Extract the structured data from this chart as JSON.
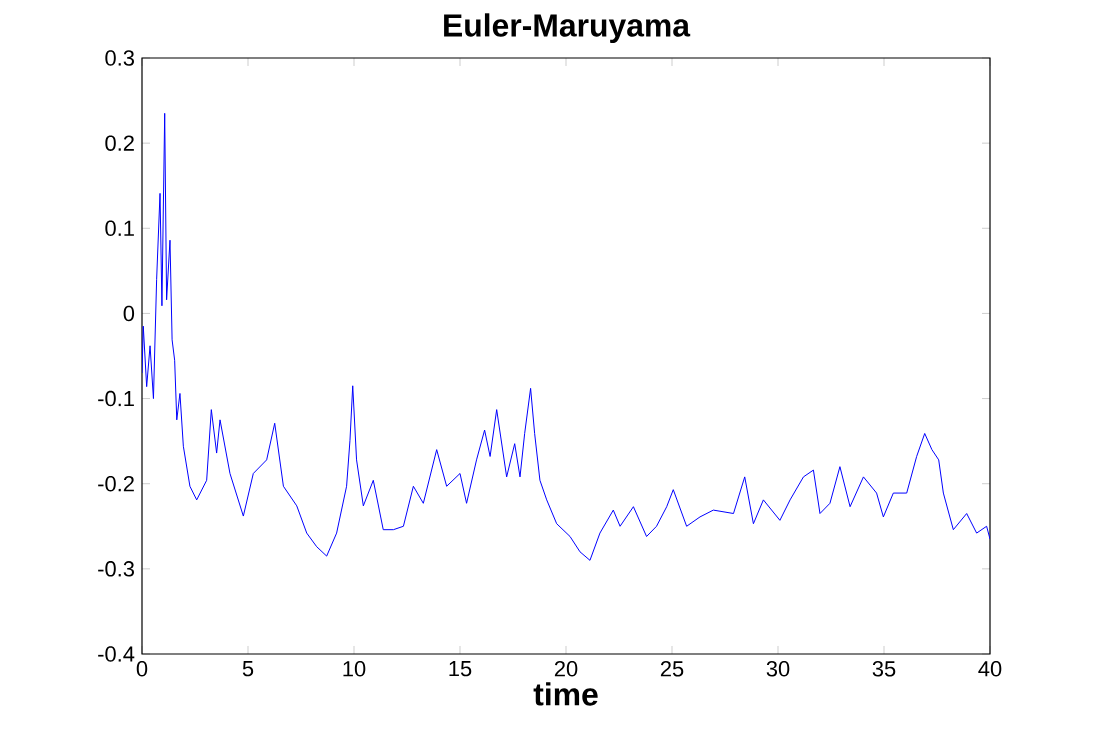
{
  "chart_data": {
    "type": "line",
    "title": "Euler-Maruyama",
    "xlabel": "time",
    "xlim": [
      0,
      40
    ],
    "ylim": [
      -0.4,
      0.3
    ],
    "xticks": [
      0,
      5,
      10,
      15,
      20,
      25,
      30,
      35,
      40
    ],
    "yticks": [
      -0.4,
      -0.3,
      -0.2,
      -0.1,
      0,
      0.1,
      0.2,
      0.3
    ],
    "marker": "none",
    "line_style": "solid",
    "series": [
      {
        "color": "#0000ff",
        "x": [
          0,
          0.06,
          0.22,
          0.38,
          0.54,
          0.69,
          0.85,
          0.94,
          1.07,
          1.16,
          1.32,
          1.42,
          1.54,
          1.64,
          1.79,
          1.95,
          2.26,
          2.58,
          3.05,
          3.27,
          3.52,
          3.68,
          4.15,
          4.78,
          5.25,
          5.88,
          6.26,
          6.67,
          7.3,
          7.77,
          8.24,
          8.71,
          9.18,
          9.65,
          9.81,
          9.94,
          10.12,
          10.44,
          10.91,
          11.38,
          11.86,
          12.33,
          12.8,
          13.27,
          13.9,
          14.37,
          15.0,
          15.31,
          15.78,
          16.16,
          16.42,
          16.73,
          17.2,
          17.58,
          17.83,
          18.05,
          18.33,
          18.52,
          18.77,
          19.09,
          19.56,
          20.19,
          20.66,
          21.13,
          21.6,
          22.23,
          22.55,
          23.18,
          23.8,
          24.27,
          24.75,
          25.06,
          25.69,
          26.32,
          26.95,
          27.9,
          28.43,
          28.84,
          29.31,
          30.09,
          30.57,
          31.2,
          31.67,
          31.98,
          32.45,
          32.92,
          33.4,
          34.03,
          34.65,
          34.97,
          35.44,
          36.07,
          36.54,
          36.92,
          37.26,
          37.58,
          37.8,
          38.27,
          38.9,
          39.37,
          39.84,
          40
        ],
        "values": [
          -0.07,
          -0.015,
          -0.086,
          -0.038,
          -0.1,
          0.04,
          0.141,
          0.009,
          0.235,
          0.016,
          0.086,
          -0.031,
          -0.055,
          -0.125,
          -0.094,
          -0.156,
          -0.203,
          -0.219,
          -0.196,
          -0.113,
          -0.164,
          -0.125,
          -0.188,
          -0.238,
          -0.188,
          -0.172,
          -0.129,
          -0.203,
          -0.226,
          -0.258,
          -0.274,
          -0.285,
          -0.258,
          -0.203,
          -0.149,
          -0.085,
          -0.172,
          -0.226,
          -0.196,
          -0.254,
          -0.254,
          -0.25,
          -0.203,
          -0.223,
          -0.16,
          -0.203,
          -0.188,
          -0.223,
          -0.172,
          -0.137,
          -0.168,
          -0.113,
          -0.192,
          -0.153,
          -0.192,
          -0.141,
          -0.088,
          -0.141,
          -0.196,
          -0.219,
          -0.247,
          -0.262,
          -0.28,
          -0.29,
          -0.258,
          -0.231,
          -0.25,
          -0.227,
          -0.262,
          -0.25,
          -0.227,
          -0.207,
          -0.25,
          -0.239,
          -0.231,
          -0.235,
          -0.192,
          -0.247,
          -0.219,
          -0.243,
          -0.219,
          -0.192,
          -0.184,
          -0.235,
          -0.223,
          -0.18,
          -0.227,
          -0.192,
          -0.211,
          -0.239,
          -0.211,
          -0.211,
          -0.168,
          -0.141,
          -0.16,
          -0.172,
          -0.211,
          -0.254,
          -0.235,
          -0.258,
          -0.25,
          -0.265
        ]
      }
    ]
  }
}
